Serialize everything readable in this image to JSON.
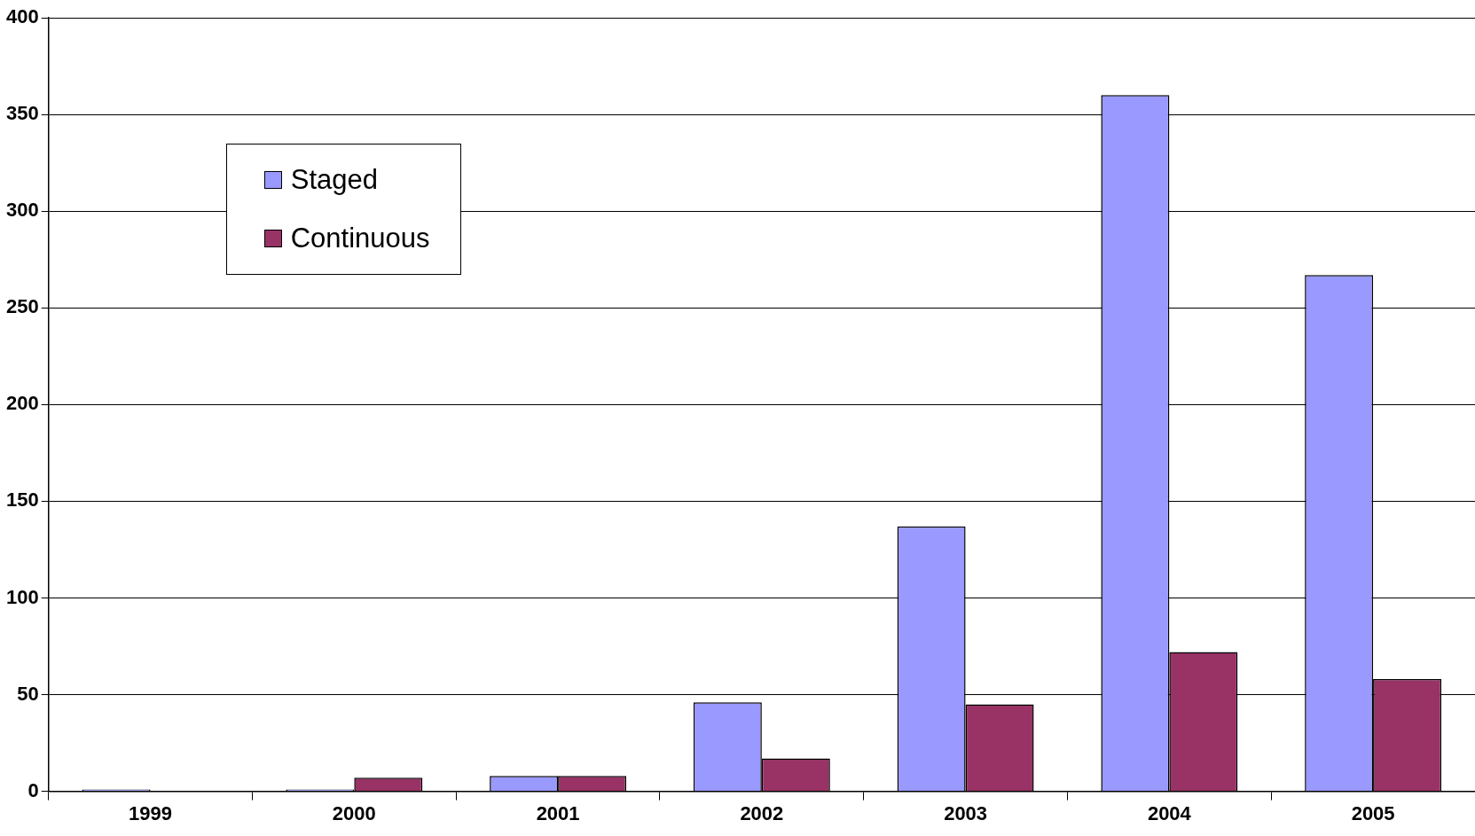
{
  "chart_data": {
    "type": "bar",
    "categories": [
      "1999",
      "2000",
      "2001",
      "2002",
      "2003",
      "2004",
      "2005"
    ],
    "series": [
      {
        "name": "Staged",
        "color": "#9999ff",
        "values": [
          1,
          1,
          8,
          46,
          137,
          360,
          267
        ]
      },
      {
        "name": "Continuous",
        "color": "#993366",
        "values": [
          null,
          7,
          8,
          17,
          45,
          72,
          58
        ]
      }
    ],
    "ylim": [
      0,
      400
    ],
    "yticks": [
      0,
      50,
      100,
      150,
      200,
      250,
      300,
      350,
      400
    ],
    "grid": "y",
    "legend": "top left"
  }
}
